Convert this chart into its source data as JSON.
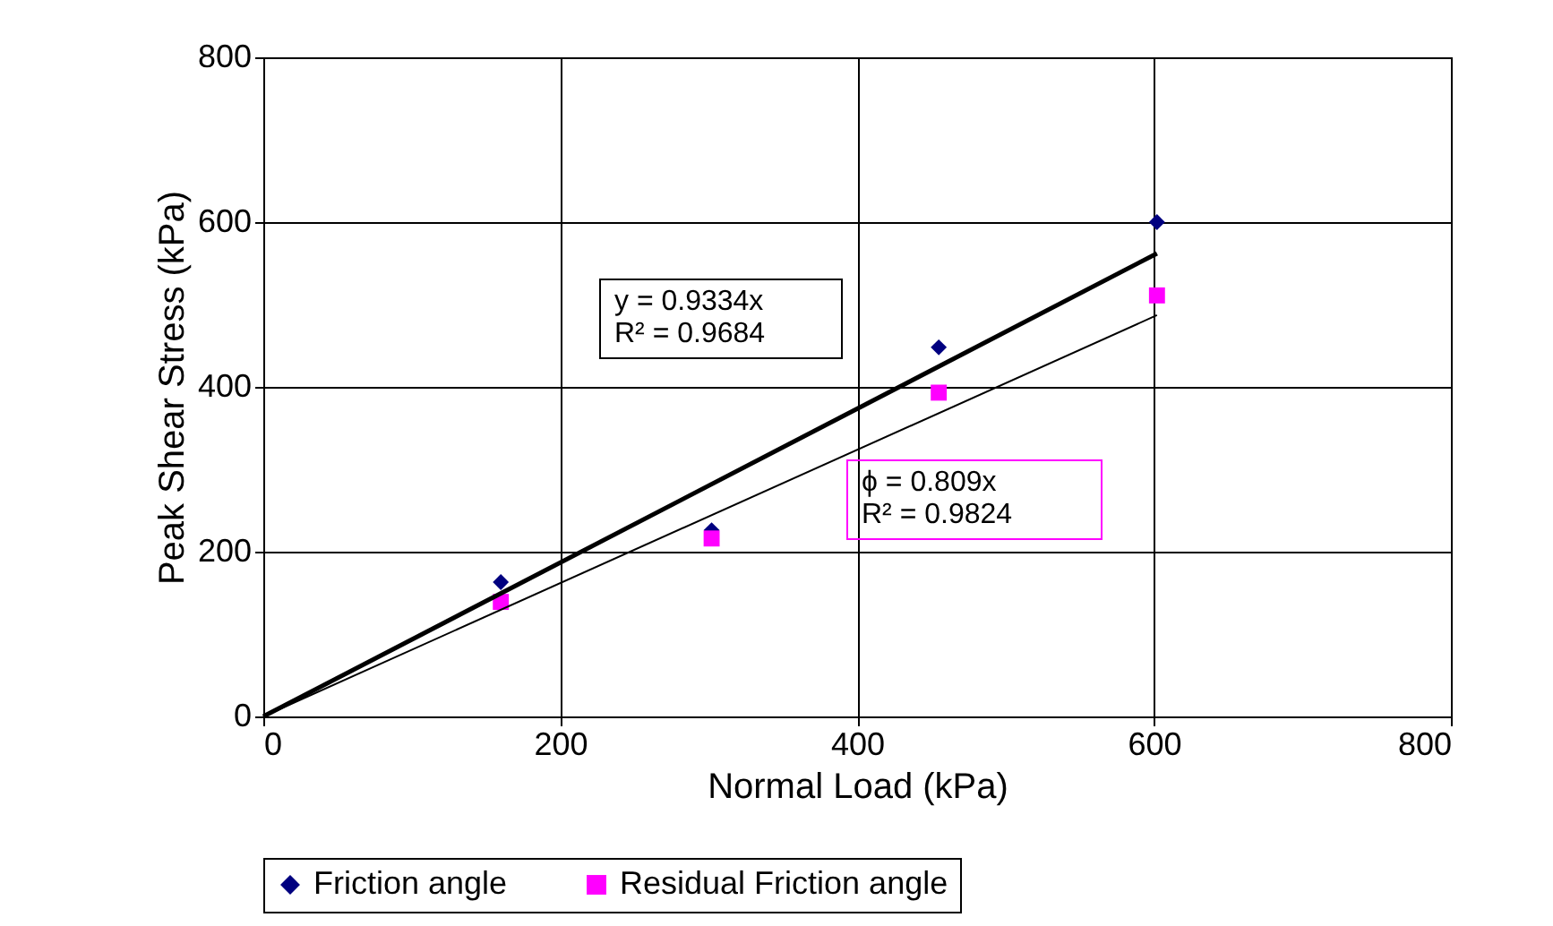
{
  "chart_data": {
    "type": "scatter",
    "xlabel": "Normal Load (kPa)",
    "ylabel": "Peak Shear Stress (kPa)",
    "xlim": [
      0,
      800
    ],
    "ylim": [
      0,
      800
    ],
    "xticks": [
      0,
      200,
      400,
      600,
      800
    ],
    "yticks": [
      0,
      200,
      400,
      600,
      800
    ],
    "grid": true,
    "legend": "bottom",
    "series": [
      {
        "name": "Friction angle",
        "marker": "diamond",
        "color": "#000080",
        "x": [
          160,
          302,
          455,
          602
        ],
        "values": [
          163,
          226,
          448,
          600
        ]
      },
      {
        "name": "Residual Friction angle",
        "marker": "square",
        "color": "#ff00ff",
        "x": [
          160,
          302,
          455,
          602
        ],
        "values": [
          139,
          216,
          393,
          511
        ]
      },
      {
        "type": "line",
        "color": "#000000",
        "x": [
          0,
          602
        ],
        "values": [
          0,
          562
        ]
      },
      {
        "type": "line",
        "color": "#000000",
        "x": [
          0,
          602
        ],
        "values": [
          0,
          487
        ]
      }
    ],
    "annotations": [
      "y = 0.9334x\nR² = 0.9684",
      "ϕ = 0.809x\nR² = 0.9824"
    ]
  }
}
